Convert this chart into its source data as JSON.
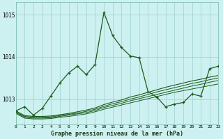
{
  "title": "Graphe pression niveau de la mer (hPa)",
  "bg_color": "#cdf0f0",
  "grid_color": "#9ecfcf",
  "line_color": "#1a5c1a",
  "x_min": 0,
  "x_max": 23,
  "y_min": 1012.4,
  "y_max": 1015.3,
  "yticks": [
    1013,
    1014,
    1015
  ],
  "xticks": [
    0,
    1,
    2,
    3,
    4,
    5,
    6,
    7,
    8,
    9,
    10,
    11,
    12,
    13,
    14,
    15,
    16,
    17,
    18,
    19,
    20,
    21,
    22,
    23
  ],
  "x": [
    0,
    1,
    2,
    3,
    4,
    5,
    6,
    7,
    8,
    9,
    10,
    11,
    12,
    13,
    14,
    15,
    16,
    17,
    18,
    19,
    20,
    21,
    22,
    23
  ],
  "y_main": [
    1012.72,
    1012.82,
    1012.62,
    1012.78,
    1013.08,
    1013.38,
    1013.62,
    1013.78,
    1013.58,
    1013.82,
    1015.05,
    1014.5,
    1014.22,
    1014.02,
    1013.98,
    1013.18,
    1013.05,
    1012.82,
    1012.88,
    1012.92,
    1013.12,
    1013.07,
    1013.72,
    1013.78
  ],
  "y_flat1": [
    1012.72,
    1012.61,
    1012.59,
    1012.59,
    1012.6,
    1012.63,
    1012.66,
    1012.7,
    1012.74,
    1012.79,
    1012.87,
    1012.93,
    1012.98,
    1013.05,
    1013.1,
    1013.16,
    1013.22,
    1013.28,
    1013.33,
    1013.38,
    1013.43,
    1013.47,
    1013.52,
    1013.56
  ],
  "y_flat2": [
    1012.7,
    1012.59,
    1012.57,
    1012.57,
    1012.58,
    1012.61,
    1012.64,
    1012.67,
    1012.71,
    1012.76,
    1012.83,
    1012.89,
    1012.94,
    1013.0,
    1013.05,
    1013.11,
    1013.17,
    1013.22,
    1013.27,
    1013.32,
    1013.37,
    1013.41,
    1013.46,
    1013.5
  ],
  "y_flat3": [
    1012.68,
    1012.57,
    1012.55,
    1012.55,
    1012.56,
    1012.59,
    1012.62,
    1012.65,
    1012.68,
    1012.73,
    1012.8,
    1012.85,
    1012.9,
    1012.96,
    1013.01,
    1013.06,
    1013.11,
    1013.16,
    1013.21,
    1013.26,
    1013.31,
    1013.35,
    1013.4,
    1013.44
  ],
  "y_flat4": [
    1012.66,
    1012.55,
    1012.53,
    1012.53,
    1012.54,
    1012.57,
    1012.59,
    1012.62,
    1012.65,
    1012.7,
    1012.76,
    1012.81,
    1012.86,
    1012.91,
    1012.96,
    1013.01,
    1013.06,
    1013.11,
    1013.16,
    1013.2,
    1013.24,
    1013.28,
    1013.32,
    1013.36
  ]
}
